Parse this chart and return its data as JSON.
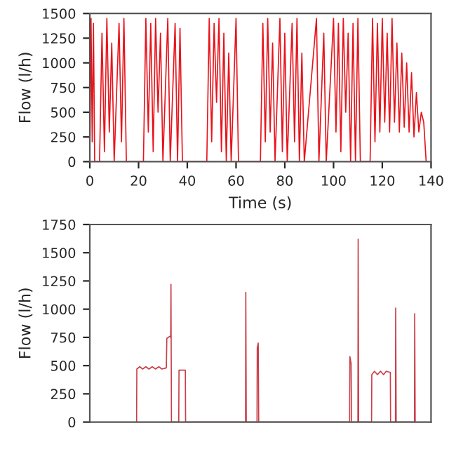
{
  "chart_data": [
    {
      "type": "line",
      "xlabel": "Time (s)",
      "ylabel": "Flow (l/h)",
      "xlim": [
        0,
        140
      ],
      "xticks": [
        0,
        20,
        40,
        60,
        80,
        100,
        120,
        140
      ],
      "ylim": [
        0,
        1500
      ],
      "yticks": [
        0,
        250,
        500,
        750,
        1000,
        1250,
        1500
      ],
      "grid": false,
      "marker": "none",
      "line_style": "solid",
      "series": [
        {
          "color": "#e8141c",
          "x": [
            0,
            0.5,
            1,
            1.5,
            2,
            4,
            5,
            6,
            7,
            8,
            9,
            10,
            12,
            13,
            14,
            15,
            22,
            23,
            24,
            25,
            26,
            27,
            28,
            29,
            30,
            32,
            33,
            35,
            36,
            37,
            38,
            48,
            49,
            50,
            51,
            52,
            53,
            54,
            55,
            56,
            57,
            58,
            60,
            61,
            70,
            71,
            72,
            73,
            74,
            75,
            76,
            78,
            79,
            80,
            81,
            83,
            84,
            85,
            86,
            87,
            88,
            93,
            94,
            96,
            97,
            100,
            101,
            102,
            103,
            104,
            105,
            106,
            107,
            108,
            109,
            110,
            111,
            115,
            116,
            117,
            118,
            119,
            120,
            121,
            122,
            123,
            124,
            125,
            126,
            127,
            128,
            129,
            130,
            131,
            132,
            133,
            134,
            135,
            136,
            137,
            138
          ],
          "values": [
            0,
            1450,
            200,
            1400,
            0,
            0,
            1300,
            100,
            1450,
            300,
            1200,
            0,
            1400,
            200,
            1450,
            0,
            0,
            1450,
            300,
            1400,
            100,
            1450,
            500,
            1300,
            0,
            1450,
            0,
            1400,
            0,
            1350,
            0,
            0,
            1450,
            200,
            1400,
            600,
            1450,
            100,
            1300,
            0,
            1100,
            0,
            1450,
            0,
            0,
            1400,
            200,
            1450,
            300,
            1200,
            0,
            1450,
            100,
            1300,
            0,
            1400,
            200,
            1450,
            0,
            1100,
            0,
            1450,
            0,
            1300,
            0,
            1450,
            300,
            1400,
            100,
            1450,
            500,
            1300,
            0,
            1400,
            0,
            1450,
            0,
            0,
            1450,
            200,
            1400,
            300,
            1450,
            400,
            1300,
            300,
            1450,
            400,
            1200,
            300,
            1100,
            350,
            1000,
            300,
            900,
            250,
            700,
            300,
            500,
            400,
            0
          ]
        }
      ]
    },
    {
      "type": "line",
      "ylabel": "Flow (l/h)",
      "xlim": [
        0,
        140
      ],
      "ylim": [
        0,
        1750
      ],
      "yticks": [
        0,
        250,
        500,
        750,
        1000,
        1250,
        1500,
        1750
      ],
      "tick_labels": "y",
      "grid": false,
      "marker": "none",
      "line_style": "solid",
      "series": [
        {
          "color": "#c8404a",
          "x": [
            19.2,
            19.3,
            20.5,
            21.7,
            23,
            24.3,
            25.6,
            27,
            28.3,
            29.6,
            31.4,
            31.6,
            32.8,
            33.2,
            33.3,
            33.5,
            36.5,
            36.6,
            39.2,
            39.3,
            63.9,
            64.0,
            64.2,
            68.6,
            68.7,
            69.1,
            69.3,
            106.6,
            106.7,
            107.2,
            107.4,
            110.0,
            110.1,
            110.3,
            115.6,
            115.7,
            116.8,
            118,
            119.3,
            120.5,
            121.6,
            123.3,
            123.4,
            125.4,
            125.5,
            125.7,
            133.2,
            133.3,
            133.5
          ],
          "values": [
            0,
            470,
            490,
            470,
            490,
            470,
            490,
            470,
            490,
            470,
            480,
            740,
            760,
            750,
            1220,
            0,
            0,
            460,
            460,
            0,
            0,
            1150,
            0,
            0,
            660,
            700,
            0,
            0,
            580,
            520,
            0,
            0,
            1620,
            0,
            0,
            420,
            450,
            420,
            450,
            420,
            450,
            440,
            0,
            0,
            1010,
            0,
            0,
            960,
            0
          ]
        }
      ]
    }
  ]
}
